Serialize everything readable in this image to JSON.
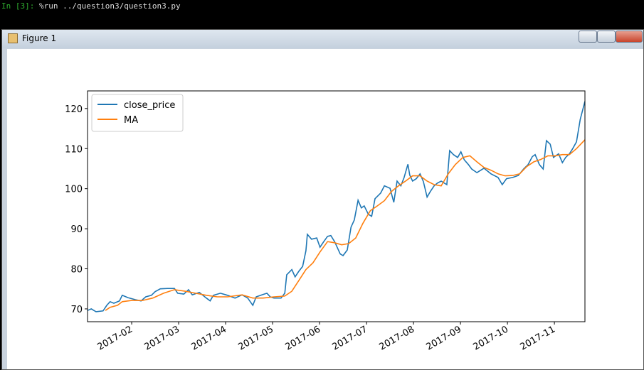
{
  "terminal": {
    "prompt": "In [3]:",
    "command": "%run ../question3/question3.py"
  },
  "window": {
    "title": "Figure 1"
  },
  "chart_data": {
    "type": "line",
    "legend": "upper left",
    "xlim": [
      1.06,
      11.65
    ],
    "ylim": [
      66.8,
      124.4
    ],
    "xticks": [
      {
        "value": 2,
        "label": "2017-02"
      },
      {
        "value": 3,
        "label": "2017-03"
      },
      {
        "value": 4,
        "label": "2017-04"
      },
      {
        "value": 5,
        "label": "2017-05"
      },
      {
        "value": 6,
        "label": "2017-06"
      },
      {
        "value": 7,
        "label": "2017-07"
      },
      {
        "value": 8,
        "label": "2017-08"
      },
      {
        "value": 9,
        "label": "2017-09"
      },
      {
        "value": 10,
        "label": "2017-10"
      },
      {
        "value": 11,
        "label": "2017-11"
      }
    ],
    "yticks": [
      70,
      80,
      90,
      100,
      110,
      120
    ],
    "series": [
      {
        "name": "close_price",
        "color": "#1f77b4",
        "x": [
          1.06,
          1.14,
          1.24,
          1.39,
          1.47,
          1.54,
          1.62,
          1.74,
          1.8,
          1.92,
          2.08,
          2.2,
          2.3,
          2.42,
          2.5,
          2.61,
          2.76,
          2.91,
          2.98,
          3.11,
          3.21,
          3.29,
          3.44,
          3.59,
          3.67,
          3.74,
          3.89,
          4.04,
          4.2,
          4.35,
          4.47,
          4.58,
          4.65,
          4.77,
          4.88,
          4.95,
          5.03,
          5.18,
          5.26,
          5.3,
          5.41,
          5.48,
          5.56,
          5.64,
          5.71,
          5.74,
          5.83,
          5.94,
          6.01,
          6.09,
          6.17,
          6.24,
          6.32,
          6.44,
          6.5,
          6.59,
          6.67,
          6.74,
          6.82,
          6.89,
          6.95,
          7.04,
          7.11,
          7.18,
          7.3,
          7.38,
          7.5,
          7.58,
          7.65,
          7.73,
          7.8,
          7.88,
          7.92,
          7.98,
          8.06,
          8.14,
          8.21,
          8.29,
          8.36,
          8.44,
          8.51,
          8.59,
          8.71,
          8.77,
          8.85,
          8.94,
          9.01,
          9.08,
          9.17,
          9.24,
          9.35,
          9.5,
          9.65,
          9.8,
          9.89,
          9.98,
          10.11,
          10.23,
          10.35,
          10.44,
          10.53,
          10.59,
          10.68,
          10.76,
          10.83,
          10.91,
          10.98,
          11.09,
          11.17,
          11.24,
          11.32,
          11.39,
          11.47,
          11.55,
          11.65
        ],
        "values": [
          69.6,
          70,
          69.3,
          69.5,
          70.9,
          71.8,
          71.4,
          72,
          73.4,
          72.8,
          72.3,
          72,
          73,
          73.4,
          74.3,
          75,
          75.1,
          75.1,
          73.9,
          73.7,
          74.8,
          73.5,
          74.1,
          72.7,
          72,
          73.4,
          73.9,
          73.4,
          72.7,
          73.5,
          72.7,
          70.9,
          73,
          73.5,
          73.9,
          73,
          72.7,
          72.7,
          73.9,
          78.5,
          79.8,
          78,
          79.4,
          80.6,
          84.5,
          88.6,
          87.4,
          87.7,
          85.4,
          86.8,
          88.1,
          88.3,
          86.8,
          83.7,
          83.3,
          84.7,
          90.4,
          92.2,
          97.1,
          95.2,
          95.7,
          93.6,
          93.1,
          97.5,
          98.9,
          100.7,
          100.1,
          96.6,
          101.9,
          100.7,
          102.8,
          106.1,
          103.4,
          101.9,
          102.5,
          103.7,
          101.8,
          97.9,
          99.3,
          100.7,
          101.4,
          101.9,
          101,
          109.5,
          108.5,
          107.8,
          109.2,
          107.2,
          106,
          104.9,
          104,
          105.1,
          103.7,
          102.8,
          101,
          102.5,
          102.8,
          103.3,
          105,
          106,
          108,
          108.5,
          106,
          104.9,
          112,
          111.1,
          107.8,
          108.7,
          106.5,
          107.8,
          108.7,
          110,
          111.7,
          117.3,
          121.8
        ]
      },
      {
        "name": "MA",
        "color": "#ff7f0e",
        "x": [
          1.44,
          1.54,
          1.7,
          1.8,
          2.0,
          2.23,
          2.45,
          2.68,
          2.91,
          3.14,
          3.36,
          3.59,
          3.82,
          4.04,
          4.35,
          4.58,
          4.8,
          5.03,
          5.26,
          5.41,
          5.56,
          5.71,
          5.86,
          6.01,
          6.17,
          6.32,
          6.47,
          6.62,
          6.77,
          6.92,
          7.08,
          7.23,
          7.38,
          7.53,
          7.68,
          7.83,
          7.98,
          8.14,
          8.29,
          8.44,
          8.59,
          8.74,
          8.89,
          9.05,
          9.2,
          9.35,
          9.5,
          9.65,
          9.8,
          9.95,
          10.11,
          10.26,
          10.41,
          10.56,
          10.71,
          10.86,
          11.01,
          11.17,
          11.32,
          11.47,
          11.65
        ],
        "values": [
          69.6,
          70.4,
          70.9,
          71.8,
          72.1,
          72.1,
          72.7,
          73.9,
          74.8,
          74.4,
          73.9,
          73.4,
          73,
          73,
          73.5,
          72.7,
          72.7,
          73,
          73.2,
          74.4,
          77.1,
          79.8,
          81.5,
          84.2,
          86.8,
          86.5,
          86,
          86.3,
          87.7,
          91.3,
          94.5,
          95.7,
          97,
          99.3,
          100.7,
          101.9,
          103.2,
          103.2,
          101.9,
          101,
          100.7,
          103.7,
          106,
          107.8,
          108.2,
          106.7,
          105.3,
          104.6,
          103.7,
          103.2,
          103.3,
          103.7,
          105.5,
          106.7,
          107.3,
          108.2,
          108.2,
          108.5,
          108.5,
          110,
          112.2
        ]
      }
    ]
  }
}
